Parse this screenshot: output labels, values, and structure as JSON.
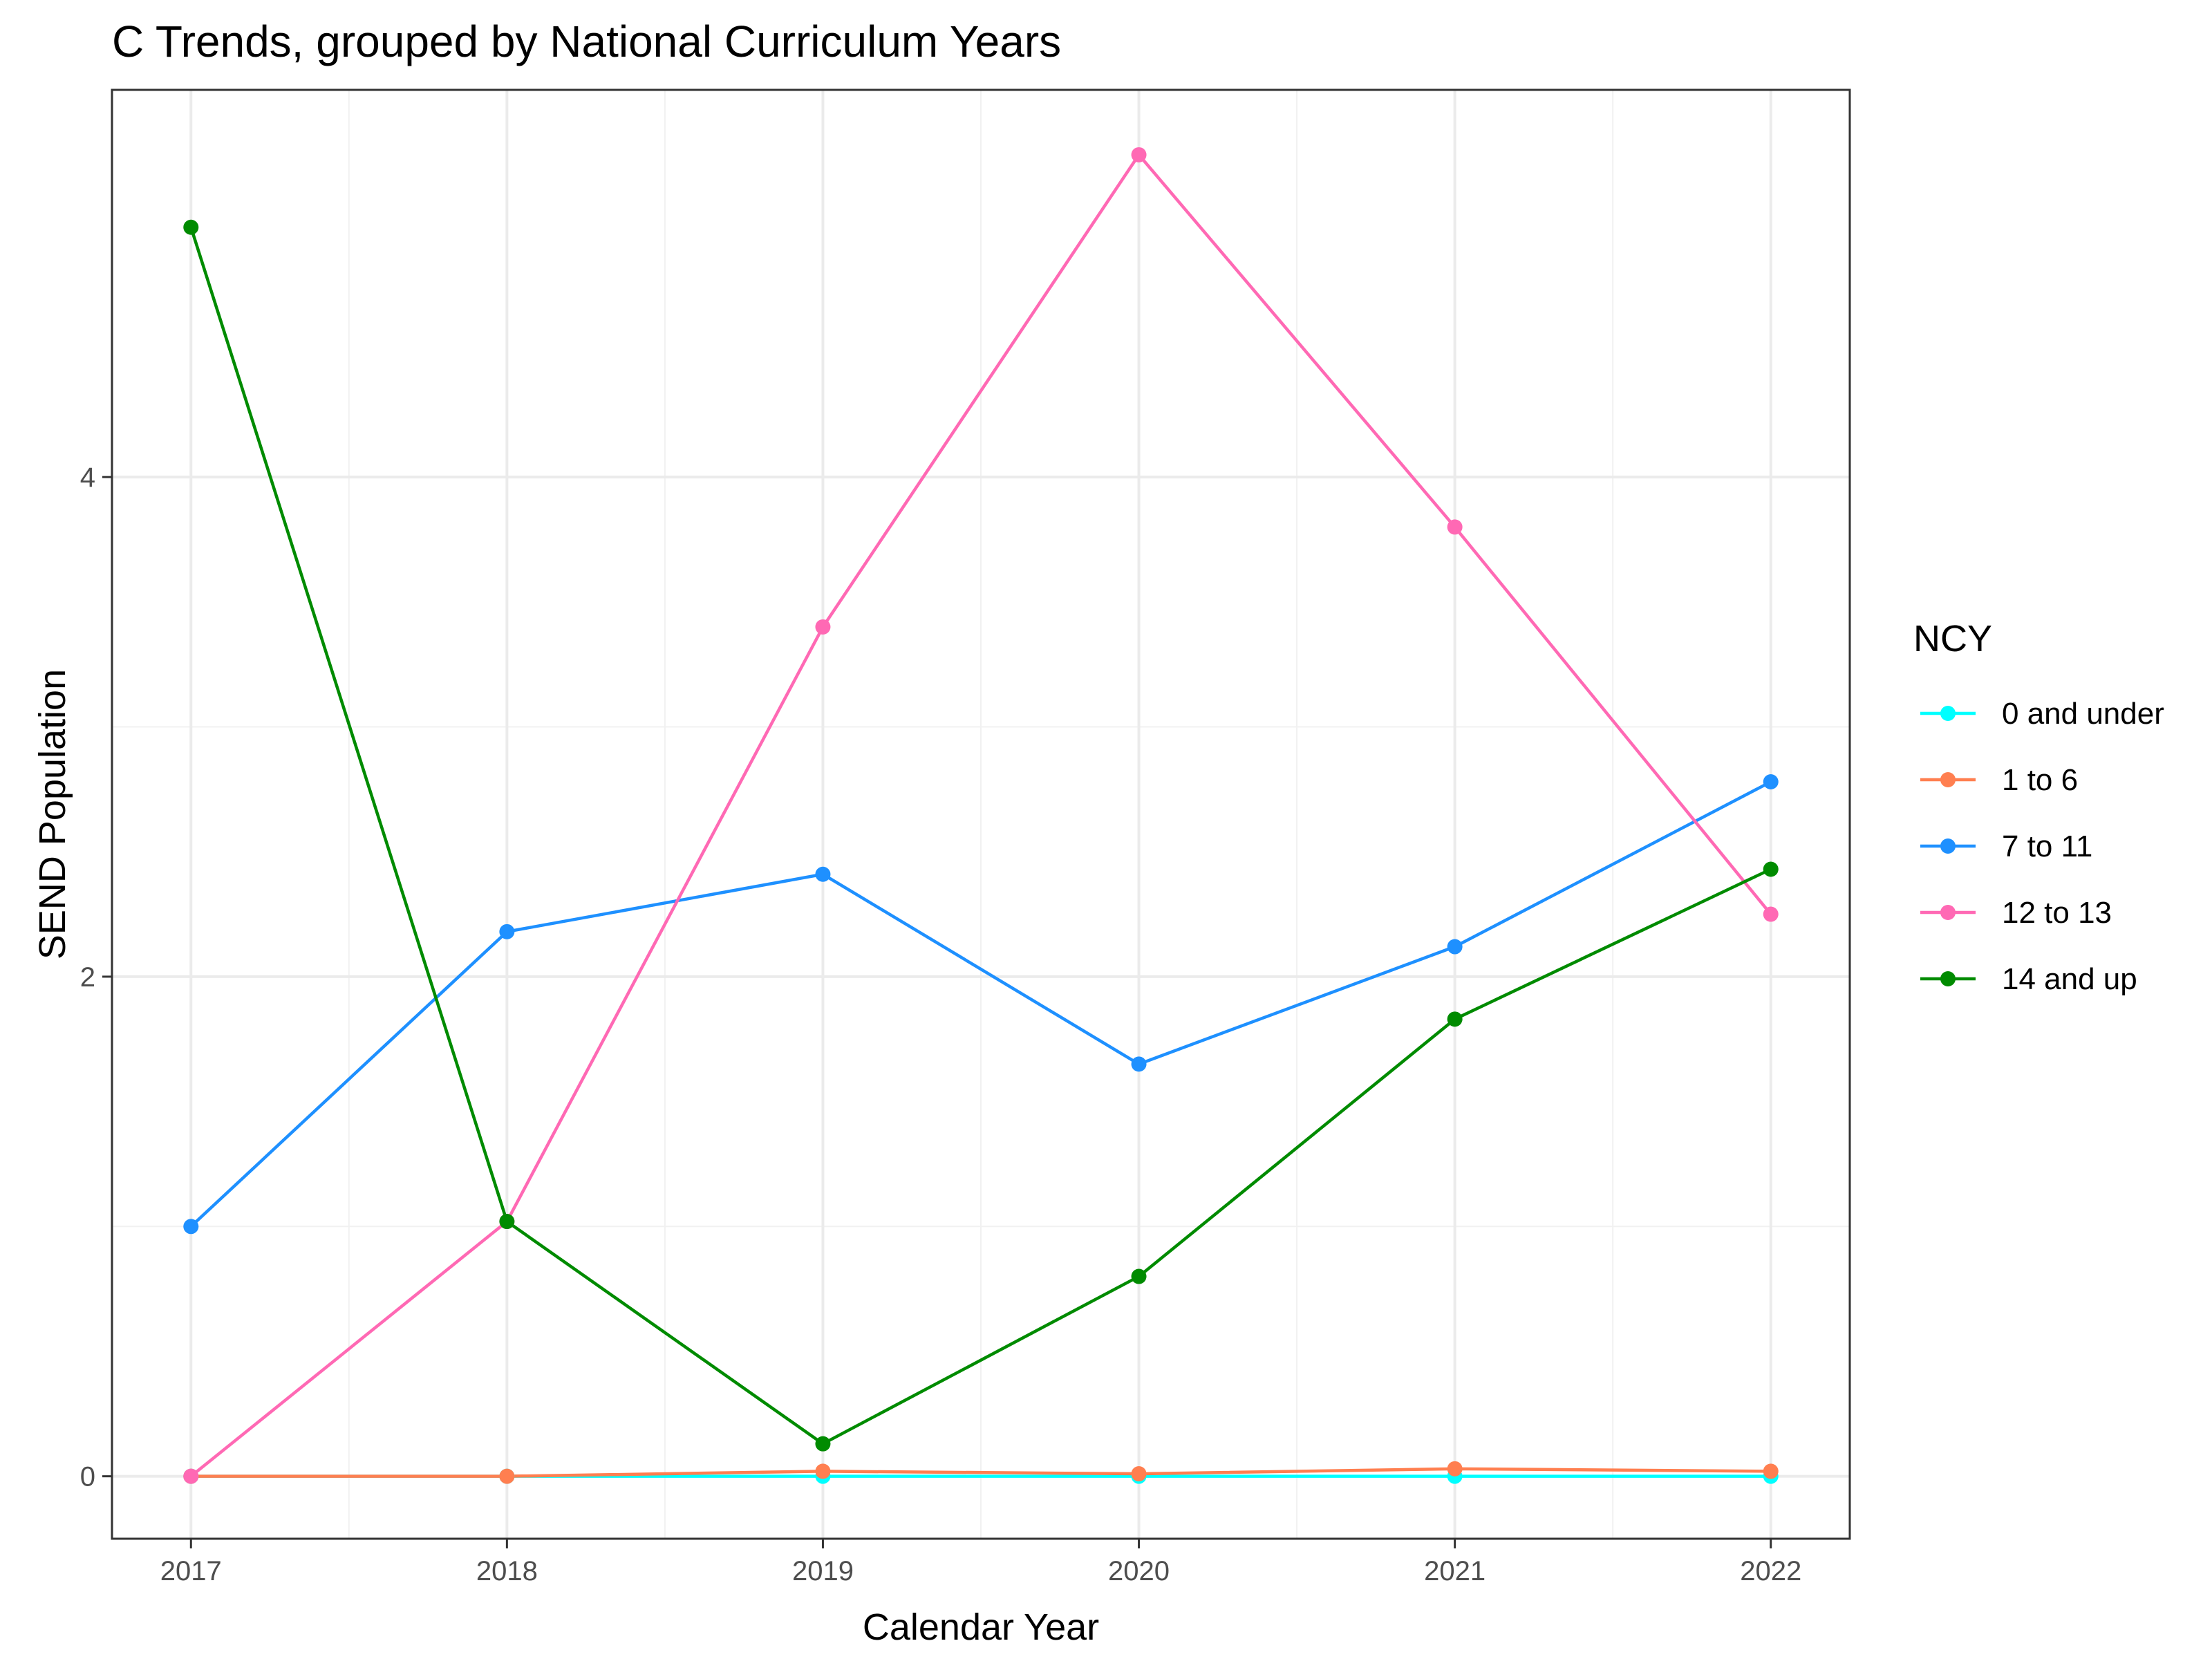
{
  "chart_data": {
    "type": "line",
    "title": "C Trends, grouped by National Curriculum Years",
    "xlabel": "Calendar Year",
    "ylabel": "SEND Population",
    "x": [
      2017,
      2018,
      2019,
      2020,
      2021,
      2022
    ],
    "xlim": [
      2016.75,
      2022.25
    ],
    "ylim": [
      -0.25,
      5.55
    ],
    "x_ticks": [
      "2017",
      "2018",
      "2019",
      "2020",
      "2021",
      "2022"
    ],
    "y_ticks": [
      0,
      2,
      4
    ],
    "y_tick_labels": [
      "0",
      "2",
      "4"
    ],
    "grid": true,
    "legend": {
      "title": "NCY",
      "position": "right"
    },
    "series": [
      {
        "name": "0 and under",
        "color": "#00FFFF",
        "values": [
          0,
          0,
          0,
          0,
          0,
          0
        ]
      },
      {
        "name": "1 to 6",
        "color": "#FF7F50",
        "values": [
          0,
          0,
          0.02,
          0.01,
          0.03,
          0.02
        ]
      },
      {
        "name": "7 to 11",
        "color": "#1E90FF",
        "values": [
          1.0,
          2.18,
          2.41,
          1.65,
          2.12,
          2.78
        ]
      },
      {
        "name": "12 to 13",
        "color": "#FF69B4",
        "values": [
          0,
          1.02,
          3.4,
          5.29,
          3.8,
          2.25
        ]
      },
      {
        "name": "14 and up",
        "color": "#008B00",
        "values": [
          5.0,
          1.02,
          0.13,
          0.8,
          1.83,
          2.43
        ]
      }
    ]
  }
}
